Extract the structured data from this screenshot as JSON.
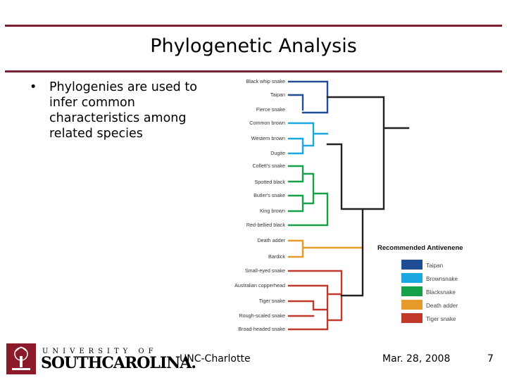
{
  "slide": {
    "title": "Phylogenetic Analysis",
    "bullet": "Phylogenies are used to infer common characteristics among related species",
    "bullet_marker": "•"
  },
  "tree": {
    "species": [
      "Black whip snake",
      "Taipan",
      "Fierce snake",
      "Common brown",
      "Western brown",
      "Dugite",
      "Collett's snake",
      "Spotted black",
      "Butler's snake",
      "King brown",
      "Red-bellied black",
      "Death adder",
      "Bardick",
      "Small-eyed snake",
      "Australian copperhead",
      "Tiger snake",
      "Rough-scaled snake",
      "Broad-headed snake"
    ],
    "legend_title": "Recommended Antivenene",
    "legend": [
      {
        "label": "Taipan",
        "color": "#1f4e96"
      },
      {
        "label": "Brownsnake",
        "color": "#1ba8e0"
      },
      {
        "label": "Blacksnake",
        "color": "#16a04a"
      },
      {
        "label": "Death adder",
        "color": "#e69a2a"
      },
      {
        "label": "Tiger snake",
        "color": "#c0392b"
      }
    ]
  },
  "footer": {
    "university_line1": "UNIVERSITY OF",
    "university_line2": "SOUTHCAROLINA.",
    "center": "UNC-Charlotte",
    "date": "Mar. 28, 2008",
    "page": "7"
  },
  "colors": {
    "accent_rule": "#7a2031",
    "trunk": "#222222"
  }
}
